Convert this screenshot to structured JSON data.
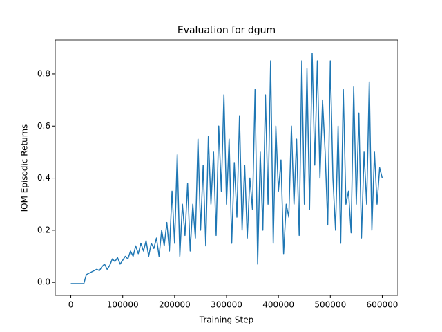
{
  "chart_data": {
    "type": "line",
    "title": "Evaluation for dgum",
    "x_label": "Training Step",
    "y_label": "IQM Episodic Returns",
    "x": [
      0,
      5000,
      10000,
      15000,
      20000,
      25000,
      30000,
      35000,
      40000,
      45000,
      50000,
      55000,
      60000,
      65000,
      70000,
      75000,
      80000,
      85000,
      90000,
      95000,
      100000,
      105000,
      110000,
      115000,
      120000,
      125000,
      130000,
      135000,
      140000,
      145000,
      150000,
      155000,
      160000,
      165000,
      170000,
      175000,
      180000,
      185000,
      190000,
      195000,
      200000,
      205000,
      210000,
      215000,
      220000,
      225000,
      230000,
      235000,
      240000,
      245000,
      250000,
      255000,
      260000,
      265000,
      270000,
      275000,
      280000,
      285000,
      290000,
      295000,
      300000,
      305000,
      310000,
      315000,
      320000,
      325000,
      330000,
      335000,
      340000,
      345000,
      350000,
      355000,
      360000,
      365000,
      370000,
      375000,
      380000,
      385000,
      390000,
      395000,
      400000,
      405000,
      410000,
      415000,
      420000,
      425000,
      430000,
      435000,
      440000,
      445000,
      450000,
      455000,
      460000,
      465000,
      470000,
      475000,
      480000,
      485000,
      490000,
      495000,
      500000,
      505000,
      510000,
      515000,
      520000,
      525000,
      530000,
      535000,
      540000,
      545000,
      550000,
      555000,
      560000,
      565000,
      570000,
      575000,
      580000,
      585000,
      590000,
      595000,
      600000
    ],
    "series": [
      {
        "color": "#1f77b4",
        "values": [
          -0.005,
          -0.005,
          -0.005,
          -0.005,
          -0.005,
          -0.005,
          0.03,
          0.035,
          0.04,
          0.045,
          0.05,
          0.045,
          0.06,
          0.07,
          0.05,
          0.065,
          0.09,
          0.08,
          0.095,
          0.07,
          0.085,
          0.1,
          0.09,
          0.12,
          0.1,
          0.14,
          0.11,
          0.15,
          0.12,
          0.16,
          0.1,
          0.15,
          0.13,
          0.17,
          0.1,
          0.2,
          0.14,
          0.23,
          0.12,
          0.35,
          0.15,
          0.49,
          0.1,
          0.3,
          0.18,
          0.38,
          0.12,
          0.3,
          0.17,
          0.55,
          0.2,
          0.45,
          0.14,
          0.56,
          0.3,
          0.5,
          0.18,
          0.6,
          0.35,
          0.72,
          0.3,
          0.55,
          0.15,
          0.46,
          0.25,
          0.64,
          0.2,
          0.45,
          0.17,
          0.4,
          0.28,
          0.74,
          0.07,
          0.5,
          0.2,
          0.72,
          0.3,
          0.85,
          0.15,
          0.6,
          0.35,
          0.47,
          0.11,
          0.3,
          0.25,
          0.6,
          0.3,
          0.55,
          0.18,
          0.85,
          0.3,
          0.82,
          0.28,
          0.88,
          0.45,
          0.85,
          0.4,
          0.7,
          0.5,
          0.22,
          0.85,
          0.4,
          0.2,
          0.6,
          0.15,
          0.74,
          0.3,
          0.35,
          0.19,
          0.75,
          0.3,
          0.65,
          0.17,
          0.5,
          0.3,
          0.77,
          0.2,
          0.5,
          0.3,
          0.44,
          0.4
        ]
      }
    ],
    "xlim": [
      -30000,
      630000
    ],
    "ylim": [
      -0.05,
      0.93
    ],
    "xticks": [
      0,
      100000,
      200000,
      300000,
      400000,
      500000,
      600000
    ],
    "yticks": [
      {
        "value": 0,
        "label": "0.0"
      },
      0.2,
      0.4,
      0.6,
      0.8
    ]
  }
}
